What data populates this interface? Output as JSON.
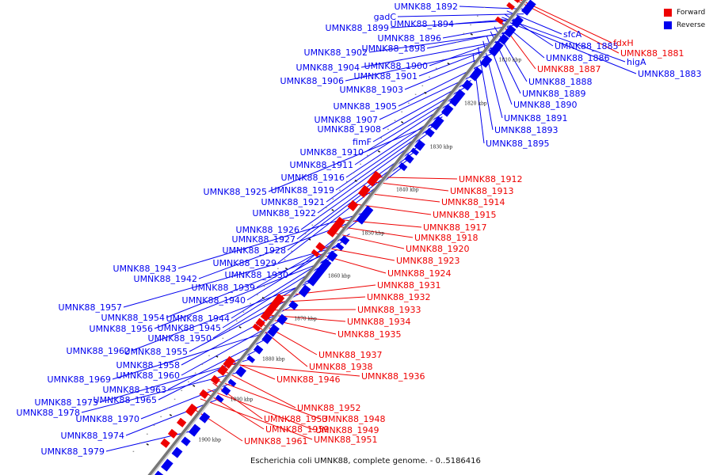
{
  "caption": "Escherichia coli UMNK88, complete genome. - 0..5186416",
  "legend": [
    {
      "label": "Forward",
      "color": "#ee0000"
    },
    {
      "label": "Reverse",
      "color": "#0000ee"
    }
  ],
  "colors": {
    "forward": "#ee0000",
    "reverse": "#0000ee",
    "axis": "#777777"
  },
  "scale_labels": [
    "1810 kbp",
    "1820 kbp",
    "1830 kbp",
    "1840 kbp",
    "1850 kbp",
    "1860 kbp",
    "1870 kbp",
    "1880 kbp",
    "1890 kbp",
    "1900 kbp",
    "1910 kbp"
  ],
  "reverse_genes": [
    "UMNK88_1892",
    "gadC",
    "UMNK88_1894",
    "UMNK88_1899",
    "UMNK88_1896",
    "UMNK88_1898",
    "UMNK88_1902",
    "UMNK88_1900",
    "UMNK88_1904",
    "UMNK88_1901",
    "UMNK88_1906",
    "UMNK88_1903",
    "UMNK88_1905",
    "UMNK88_1907",
    "UMNK88_1908",
    "fimF",
    "UMNK88_1910",
    "UMNK88_1911",
    "UMNK88_1916",
    "UMNK88_1919",
    "UMNK88_1925",
    "UMNK88_1921",
    "UMNK88_1922",
    "UMNK88_1926",
    "UMNK88_1927",
    "UMNK88_1928",
    "UMNK88_1929",
    "UMNK88_1943",
    "UMNK88_1930",
    "UMNK88_1942",
    "UMNK88_1939",
    "UMNK88_1940",
    "UMNK88_1957",
    "UMNK88_1954",
    "UMNK88_1944",
    "UMNK88_1956",
    "UMNK88_1945",
    "UMNK88_1950",
    "UMNK88_1962",
    "UMNK88_1955",
    "UMNK88_1958",
    "UMNK88_1960",
    "UMNK88_1969",
    "UMNK88_1963",
    "UMNK88_1965",
    "UMNK88_1973",
    "UMNK88_1978",
    "UMNK88_1970",
    "UMNK88_1974",
    "UMNK88_1979"
  ],
  "reverse_genes_right": [
    "sfcA",
    "UMNK88_1885",
    "higA",
    "UMNK88_1883",
    "UMNK88_1886",
    "UMNK88_1888",
    "UMNK88_1889",
    "UMNK88_1890",
    "UMNK88_1891",
    "UMNK88_1893",
    "UMNK88_1895"
  ],
  "forward_genes": [
    "fdxH",
    "UMNK88_1881",
    "UMNK88_1887",
    "UMNK88_1912",
    "UMNK88_1913",
    "UMNK88_1914",
    "UMNK88_1915",
    "UMNK88_1917",
    "UMNK88_1918",
    "UMNK88_1920",
    "UMNK88_1923",
    "UMNK88_1924",
    "UMNK88_1931",
    "UMNK88_1932",
    "UMNK88_1933",
    "UMNK88_1934",
    "UMNK88_1935",
    "UMNK88_1937",
    "UMNK88_1938",
    "UMNK88_1946",
    "UMNK88_1936",
    "UMNK88_1952",
    "UMNK88_1953",
    "UMNK88_1948",
    "UMNK88_1959",
    "UMNK88_1949",
    "UMNK88_1961",
    "UMNK88_1951"
  ]
}
